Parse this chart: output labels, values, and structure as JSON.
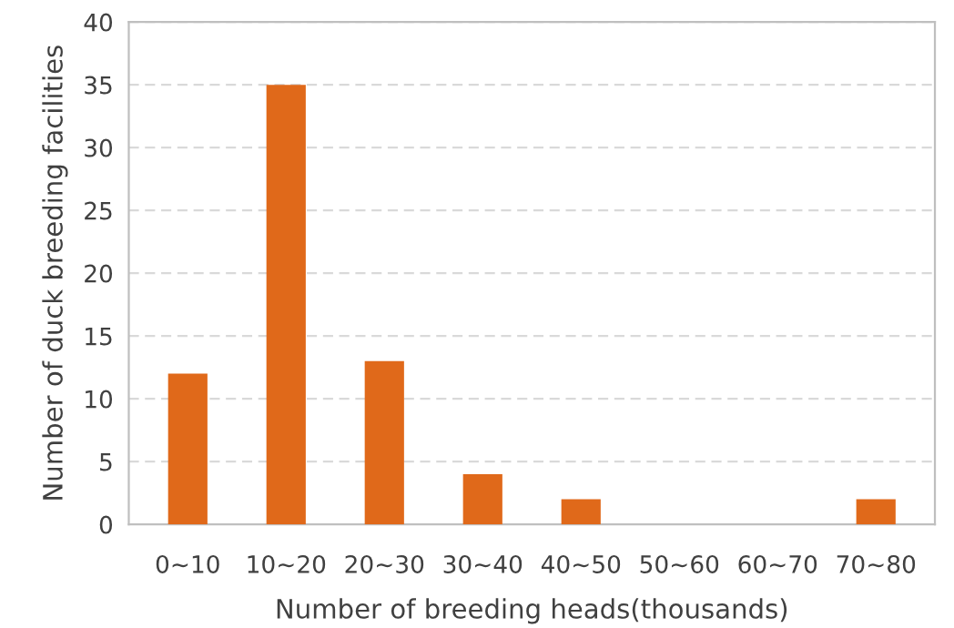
{
  "chart_data": {
    "type": "bar",
    "xlabel": "Number of breeding heads(thousands)",
    "ylabel": "Number of duck breeding facilities",
    "categories": [
      "0~10",
      "10~20",
      "20~30",
      "30~40",
      "40~50",
      "50~60",
      "60~70",
      "70~80"
    ],
    "values": [
      12,
      35,
      13,
      4,
      2,
      0,
      0,
      2
    ],
    "color": "#e0691a",
    "ylim": [
      0,
      40
    ],
    "yticks": [
      0,
      5,
      10,
      15,
      20,
      25,
      30,
      35,
      40
    ],
    "grid": "y"
  }
}
